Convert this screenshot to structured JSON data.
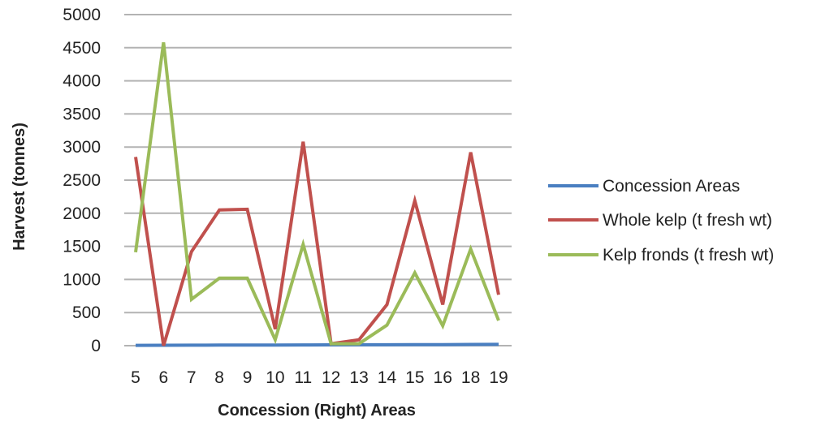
{
  "chart_data": {
    "type": "line",
    "title": "",
    "xlabel": "Concession (Right) Areas",
    "ylabel": "Harvest (tonnes)",
    "ylim": [
      0,
      5000
    ],
    "yticks": [
      0,
      500,
      1000,
      1500,
      2000,
      2500,
      3000,
      3500,
      4000,
      4500,
      5000
    ],
    "categories": [
      "5",
      "6",
      "7",
      "8",
      "9",
      "10",
      "11",
      "12",
      "13",
      "14",
      "15",
      "16",
      "18",
      "19"
    ],
    "grid": "horizontal",
    "legend_position": "right",
    "series": [
      {
        "name": "Concession Areas",
        "color": "#4a7fc1",
        "values": [
          5,
          6,
          7,
          8,
          9,
          10,
          11,
          12,
          13,
          14,
          15,
          16,
          18,
          19
        ]
      },
      {
        "name": "Whole kelp (t fresh wt)",
        "color": "#c0504d",
        "values": [
          2850,
          0,
          1420,
          2050,
          2060,
          250,
          3080,
          30,
          90,
          620,
          2190,
          620,
          2920,
          770
        ]
      },
      {
        "name": "Kelp fronds (t fresh wt)",
        "color": "#9bbb59",
        "values": [
          1410,
          4580,
          700,
          1020,
          1020,
          90,
          1530,
          30,
          30,
          310,
          1100,
          300,
          1460,
          380
        ]
      }
    ]
  }
}
